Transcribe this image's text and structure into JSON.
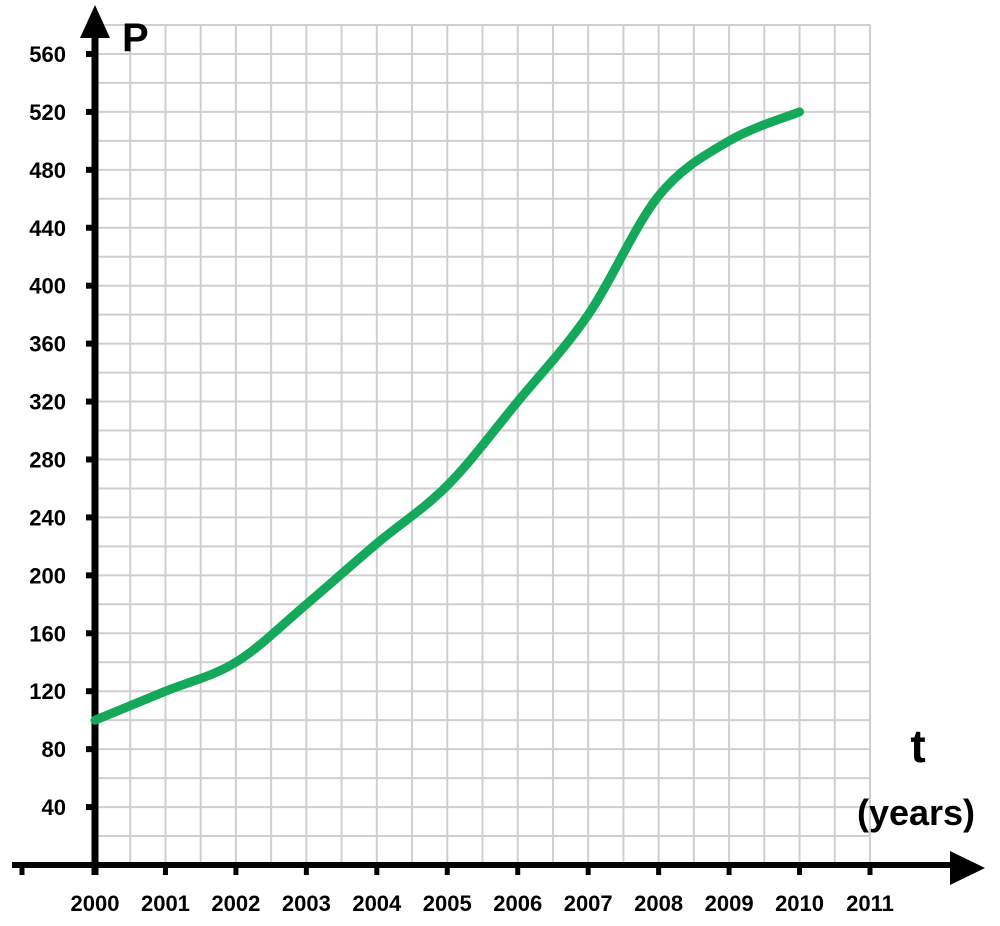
{
  "chart_data": {
    "type": "line",
    "ylabel": "P",
    "xlabel": "t",
    "xlabel_unit": "(years)",
    "x_ticks": [
      "2000",
      "2001",
      "2002",
      "2003",
      "2004",
      "2005",
      "2006",
      "2007",
      "2008",
      "2009",
      "2010",
      "2011"
    ],
    "y_ticks": [
      "40",
      "80",
      "120",
      "160",
      "200",
      "240",
      "280",
      "320",
      "360",
      "400",
      "440",
      "480",
      "520",
      "560"
    ],
    "xlim": [
      2000,
      2011
    ],
    "ylim": [
      0,
      580
    ],
    "grid": true,
    "colors": {
      "line": "#14a85a",
      "grid": "#cfcfcf",
      "axis": "#000000"
    },
    "series": [
      {
        "x": [
          2000,
          2001,
          2002,
          2003,
          2004,
          2005,
          2006,
          2007,
          2008,
          2009,
          2010
        ],
        "y": [
          100,
          120,
          140,
          180,
          222,
          262,
          320,
          380,
          462,
          500,
          520
        ]
      }
    ]
  }
}
